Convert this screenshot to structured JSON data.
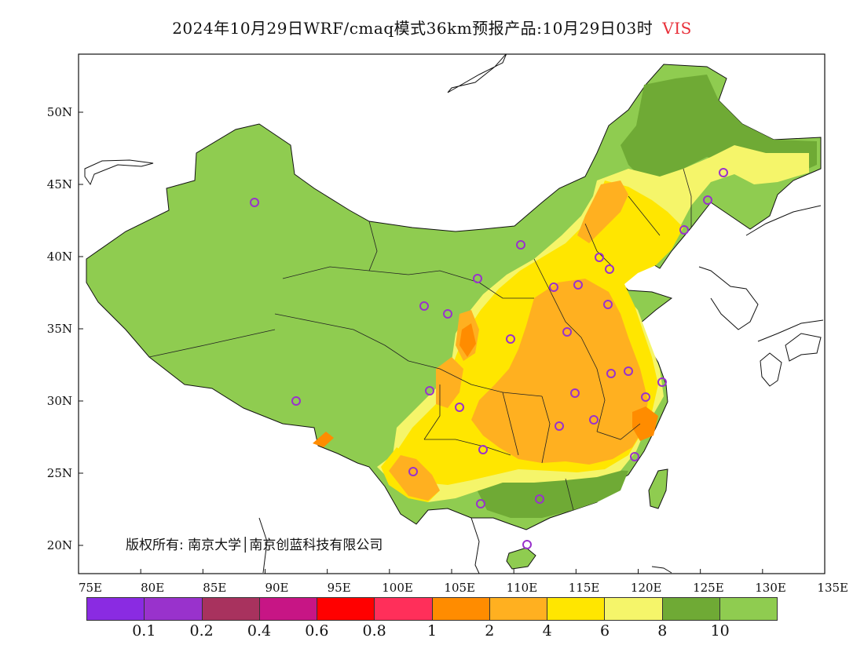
{
  "title": {
    "main": "2024年10月29日WRF/cmaq模式36km预报产品:10月29日03时",
    "variable": "VIS",
    "variable_color": "#e8303a"
  },
  "axes": {
    "lon_ticks": [
      "75E",
      "80E",
      "85E",
      "90E",
      "95E",
      "100E",
      "105E",
      "110E",
      "115E",
      "120E",
      "125E",
      "130E",
      "135E"
    ],
    "lat_ticks": [
      "20N",
      "25N",
      "30N",
      "35N",
      "40N",
      "45N",
      "50N"
    ]
  },
  "copyright": "版权所有: 南京大学│南京创蓝科技有限公司",
  "legend": {
    "colors": [
      "#8a2be2",
      "#9932cc",
      "#a8325e",
      "#c71585",
      "#ff0000",
      "#ff2f5a",
      "#ff8c00",
      "#ffb020",
      "#ffe600",
      "#f5f56a",
      "#6faa35",
      "#8fcc50"
    ],
    "labels": [
      "0.1",
      "0.2",
      "0.4",
      "0.6",
      "0.8",
      "1",
      "2",
      "4",
      "6",
      "8",
      "10"
    ]
  },
  "fills": {
    "land": "#8fcc50",
    "dark_green": "#6faa35",
    "light_yellow": "#f5f56a",
    "yellow": "#ffe600",
    "orange": "#ffb020",
    "dark_orange": "#ff8c00",
    "station_marker": "#9932cc"
  },
  "map_icon": "china-visibility-map"
}
